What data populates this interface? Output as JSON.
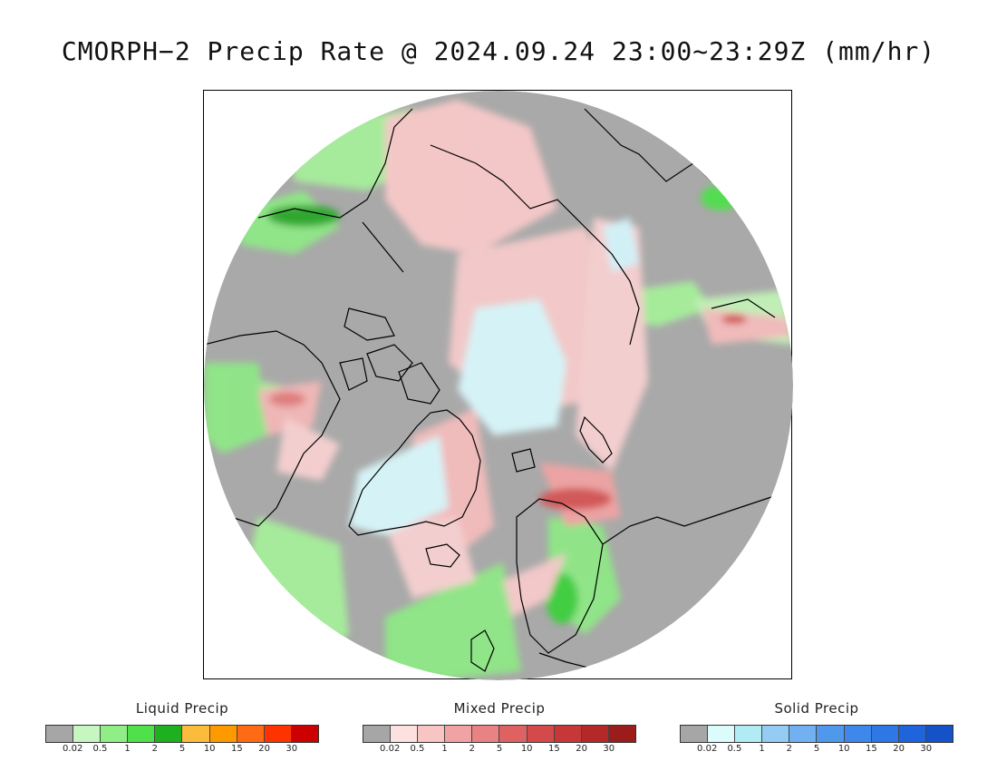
{
  "title": "CMORPH−2 Precip Rate @ 2024.09.24 23:00~23:29Z (mm/hr)",
  "colors": {
    "background": "#a9a9a9",
    "coastline": "#000000"
  },
  "legends": [
    {
      "title": "Liquid Precip",
      "colors": [
        "#a6a6a6",
        "#c6f7c0",
        "#8fef86",
        "#4fe04c",
        "#1fb020",
        "#fbbb3b",
        "#ff9900",
        "#ff6a14",
        "#ff3300",
        "#cc0000"
      ],
      "ticks": [
        "0.02",
        "0.5",
        "1",
        "2",
        "5",
        "10",
        "15",
        "20",
        "30"
      ]
    },
    {
      "title": "Mixed Precip",
      "colors": [
        "#a6a6a6",
        "#fde0e0",
        "#f8c4c4",
        "#f1a3a3",
        "#e98282",
        "#df6262",
        "#d44a4a",
        "#c63838",
        "#b42828",
        "#9c1c1c"
      ],
      "ticks": [
        "0.02",
        "0.5",
        "1",
        "2",
        "5",
        "10",
        "15",
        "20",
        "30"
      ]
    },
    {
      "title": "Solid Precip",
      "colors": [
        "#a6a6a6",
        "#dcfbfb",
        "#b1ecf4",
        "#94ccf4",
        "#72b1f1",
        "#4f98ec",
        "#3d88ea",
        "#2d78e4",
        "#1f64da",
        "#1552c8"
      ],
      "ticks": [
        "0.02",
        "0.5",
        "1",
        "2",
        "5",
        "10",
        "15",
        "20",
        "30"
      ]
    }
  ]
}
